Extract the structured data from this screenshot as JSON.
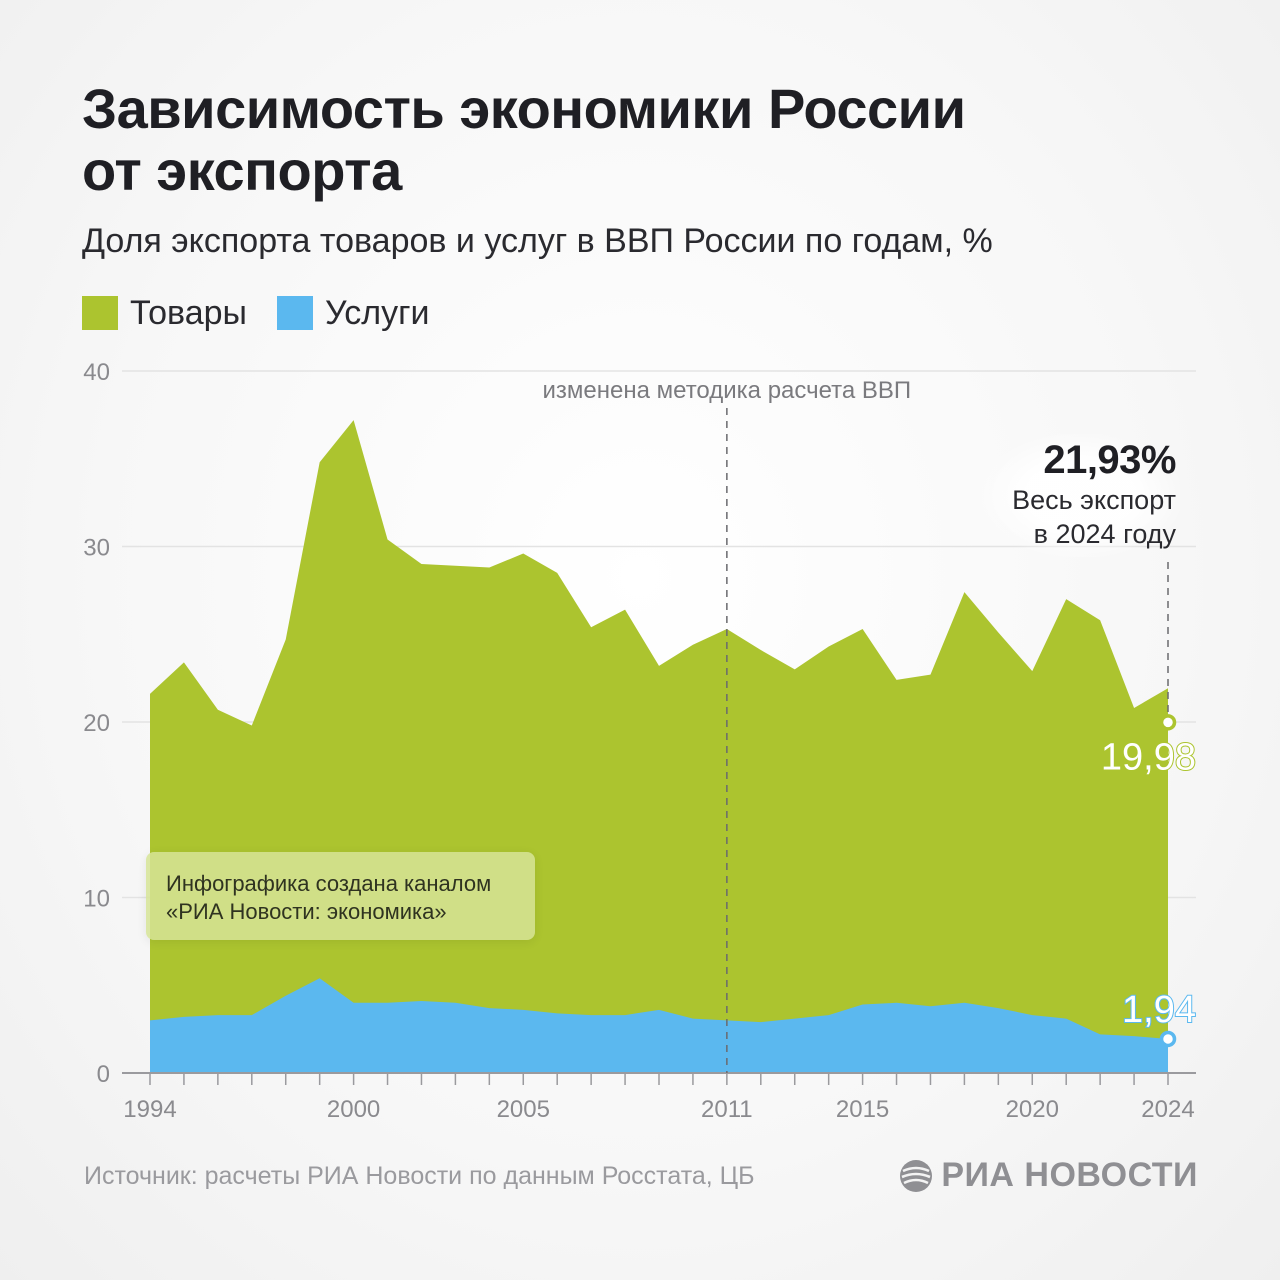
{
  "header": {
    "title_line1": "Зависимость экономики России",
    "title_line2": "от экспорта",
    "subtitle": "Доля экспорта товаров и услуг в ВВП России по годам, %"
  },
  "legend": [
    {
      "label": "Товары",
      "color": "#acc42f"
    },
    {
      "label": "Услуги",
      "color": "#5bb8ef"
    }
  ],
  "annotations": {
    "methodology": "изменена методика расчета ВВП",
    "methodology_year": 2011,
    "total_value": "21,93%",
    "total_line1": "Весь экспорт",
    "total_line2": "в 2024 году",
    "goods_last_label": "19,98",
    "services_last_label": "1,94"
  },
  "credit": {
    "line1": "Инфографика создана каналом",
    "line2": "«РИА Новости: экономика»"
  },
  "footer": {
    "source": "Источник: расчеты РИА Новости по данным Росстата, ЦБ",
    "brand": "РИА НОВОСТИ"
  },
  "chart_data": {
    "type": "area",
    "x": [
      1994,
      1995,
      1996,
      1997,
      1998,
      1999,
      2000,
      2001,
      2002,
      2003,
      2004,
      2005,
      2006,
      2007,
      2008,
      2009,
      2010,
      2011,
      2012,
      2013,
      2014,
      2015,
      2016,
      2017,
      2018,
      2019,
      2020,
      2021,
      2022,
      2023,
      2024
    ],
    "x_tick_labels": [
      "1994",
      "2000",
      "2005",
      "2011",
      "2015",
      "2020",
      "2024"
    ],
    "y_ticks": [
      0,
      10,
      20,
      30,
      40
    ],
    "ylim": [
      0,
      40
    ],
    "stacked": true,
    "series": [
      {
        "name": "Услуги",
        "color": "#5bb8ef",
        "values": [
          3.0,
          3.2,
          3.3,
          3.3,
          4.4,
          5.4,
          4.0,
          4.0,
          4.1,
          4.0,
          3.7,
          3.6,
          3.4,
          3.3,
          3.3,
          3.6,
          3.1,
          3.0,
          2.9,
          3.1,
          3.3,
          3.9,
          4.0,
          3.8,
          4.0,
          3.7,
          3.3,
          3.1,
          2.2,
          2.1,
          1.94
        ]
      },
      {
        "name": "Товары",
        "color": "#acc42f",
        "values": [
          18.6,
          20.2,
          17.4,
          16.5,
          20.3,
          29.4,
          33.2,
          26.4,
          24.9,
          24.9,
          25.1,
          26.0,
          25.1,
          22.1,
          23.1,
          19.6,
          21.3,
          22.3,
          21.2,
          19.9,
          21.0,
          21.4,
          18.4,
          18.9,
          23.4,
          21.4,
          19.6,
          23.9,
          23.6,
          18.7,
          19.98
        ]
      }
    ],
    "grid": true
  }
}
